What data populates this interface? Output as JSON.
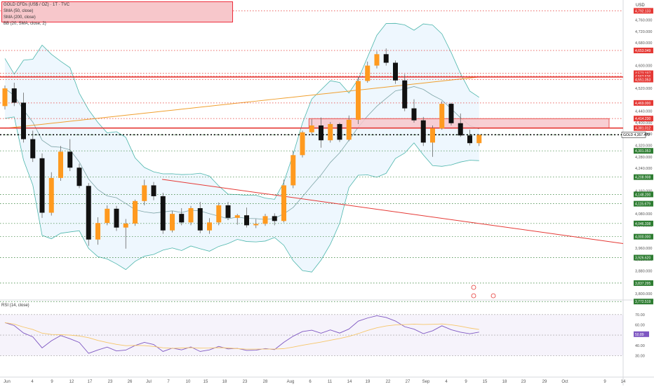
{
  "chart_data": [
    {
      "type": "candlestick",
      "legend": [
        "GOLD CFDs (US$ / OZ) · 1T · TVC",
        "SMA (50, close)",
        "SMA (200, close)",
        "BB (20, SMA, close, 2)"
      ],
      "currency": "USD",
      "ticker_tag": "GOLD",
      "y_ticks": [
        "4,760.000",
        "4,720.000",
        "4,680.000",
        "4,600.000",
        "4,560.000",
        "4,520.000",
        "4,440.000",
        "4,400.000",
        "4,360.000",
        "4,320.000",
        "4,280.000",
        "4,240.000",
        "4,160.000",
        "4,080.000",
        "4,040.000",
        "3,960.000",
        "3,920.000",
        "3,880.000",
        "3,840.000",
        "3,800.000"
      ],
      "y_ticks_values": [
        4760,
        4720,
        4680,
        4600,
        4560,
        4520,
        4440,
        4400,
        4360,
        4320,
        4280,
        4240,
        4160,
        4080,
        4040,
        3960,
        3920,
        3880,
        3840,
        3800
      ],
      "ylim": [
        3778,
        4830
      ],
      "price_tags": [
        {
          "label": "4,792.133",
          "value": 4792.133,
          "color": "#e53935"
        },
        {
          "label": "4,653.049",
          "value": 4653.049,
          "color": "#e53935"
        },
        {
          "label": "4,573.197",
          "value": 4573.197,
          "color": "#e53935"
        },
        {
          "label": "4,562.636",
          "value": 4562.636,
          "color": "#e53935"
        },
        {
          "label": "4,551.053",
          "value": 4551.053,
          "color": "#e53935"
        },
        {
          "label": "4,469.000",
          "value": 4469,
          "color": "#e53935"
        },
        {
          "label": "4,414.230",
          "value": 4414.23,
          "color": "#e53935"
        },
        {
          "label": "4,381.012",
          "value": 4381.012,
          "color": "#e53935"
        },
        {
          "label": "4,357.470",
          "value": 4357.47,
          "color": "#ffffff"
        },
        {
          "label": "4,301.053",
          "value": 4301.053,
          "color": "#2e7d32"
        },
        {
          "label": "4,208.908",
          "value": 4208.908,
          "color": "#2e7d32"
        },
        {
          "label": "4,148.200",
          "value": 4148.2,
          "color": "#2e7d32"
        },
        {
          "label": "4,115.679",
          "value": 4115.679,
          "color": "#2e7d32"
        },
        {
          "label": "4,046.338",
          "value": 4046.338,
          "color": "#2e7d32"
        },
        {
          "label": "4,000.000",
          "value": 4000,
          "color": "#2e7d32"
        },
        {
          "label": "3,926.620",
          "value": 3926.62,
          "color": "#2e7d32"
        },
        {
          "label": "3,837.295",
          "value": 3837.295,
          "color": "#2e7d32"
        },
        {
          "label": "3,772.519",
          "value": 3772.519,
          "color": "#2e7d32"
        }
      ],
      "zone": {
        "low": 4381,
        "high": 4414
      },
      "resistance": [
        4560,
        4381
      ],
      "current": 4357.47,
      "trendline": [
        {
          "x": "Jul 2",
          "y": 4201
        },
        {
          "x": "Sep 30",
          "y": 3976
        }
      ],
      "candles": [
        [
          4458,
          4530,
          4446,
          4520
        ],
        [
          4520,
          4540,
          4458,
          4470
        ],
        [
          4470,
          4505,
          4330,
          4342
        ],
        [
          4342,
          4372,
          4262,
          4275
        ],
        [
          4275,
          4292,
          4066,
          4084
        ],
        [
          4084,
          4226,
          4074,
          4206
        ],
        [
          4206,
          4318,
          4196,
          4298
        ],
        [
          4298,
          4342,
          4230,
          4242
        ],
        [
          4242,
          4256,
          4170,
          4178
        ],
        [
          4178,
          4188,
          3968,
          3990
        ],
        [
          3990,
          4068,
          3972,
          4048
        ],
        [
          4048,
          4110,
          4040,
          4098
        ],
        [
          4098,
          4108,
          4020,
          4032
        ],
        [
          4032,
          4062,
          3958,
          4046
        ],
        [
          4046,
          4130,
          4038,
          4125
        ],
        [
          4125,
          4200,
          4110,
          4180
        ],
        [
          4180,
          4192,
          4128,
          4142
        ],
        [
          4142,
          4154,
          4010,
          4022
        ],
        [
          4022,
          4090,
          4015,
          4080
        ],
        [
          4080,
          4100,
          4040,
          4050
        ],
        [
          4050,
          4108,
          4040,
          4100
        ],
        [
          4100,
          4122,
          4012,
          4022
        ],
        [
          4022,
          4065,
          4010,
          4050
        ],
        [
          4050,
          4120,
          4040,
          4110
        ],
        [
          4110,
          4122,
          4058,
          4066
        ],
        [
          4066,
          4080,
          4042,
          4075
        ],
        [
          4075,
          4102,
          4032,
          4040
        ],
        [
          4040,
          4062,
          4030,
          4045
        ],
        [
          4045,
          4080,
          4038,
          4072
        ],
        [
          4072,
          4082,
          4040,
          4055
        ],
        [
          4055,
          4200,
          4050,
          4180
        ],
        [
          4180,
          4300,
          4170,
          4286
        ],
        [
          4286,
          4372,
          4278,
          4366
        ],
        [
          4366,
          4412,
          4355,
          4390
        ],
        [
          4390,
          4418,
          4312,
          4338
        ],
        [
          4338,
          4402,
          4330,
          4395
        ],
        [
          4395,
          4400,
          4332,
          4340
        ],
        [
          4340,
          4425,
          4335,
          4410
        ],
        [
          4410,
          4560,
          4395,
          4546
        ],
        [
          4546,
          4614,
          4540,
          4600
        ],
        [
          4600,
          4650,
          4590,
          4640
        ],
        [
          4640,
          4660,
          4600,
          4610
        ],
        [
          4610,
          4618,
          4536,
          4548
        ],
        [
          4548,
          4570,
          4440,
          4450
        ],
        [
          4450,
          4482,
          4400,
          4408
        ],
        [
          4408,
          4420,
          4318,
          4330
        ],
        [
          4330,
          4390,
          4280,
          4380
        ],
        [
          4380,
          4475,
          4375,
          4466
        ],
        [
          4466,
          4470,
          4390,
          4398
        ],
        [
          4398,
          4432,
          4350,
          4355
        ],
        [
          4355,
          4375,
          4320,
          4328
        ],
        [
          4328,
          4360,
          4318,
          4357
        ]
      ],
      "x_ticks": [
        "Jun",
        "4",
        "9",
        "12",
        "17",
        "23",
        "26",
        "Jul",
        "7",
        "10",
        "15",
        "18",
        "23",
        "28",
        "Aug",
        "6",
        "11",
        "14",
        "19",
        "22",
        "27",
        "Sep",
        "4",
        "9",
        "15",
        "18",
        "23",
        "29",
        "Oct",
        "9",
        "14"
      ],
      "rsi": {
        "title": "RSI (14, close)",
        "y_ticks": [
          "70.00",
          "60.00",
          "50.00",
          "40.00",
          "30.00"
        ],
        "y_ticks_values": [
          70,
          60,
          50,
          40,
          30
        ],
        "current_label": "50.89",
        "current_value": 50.89,
        "ylim": [
          18,
          76
        ]
      }
    }
  ]
}
